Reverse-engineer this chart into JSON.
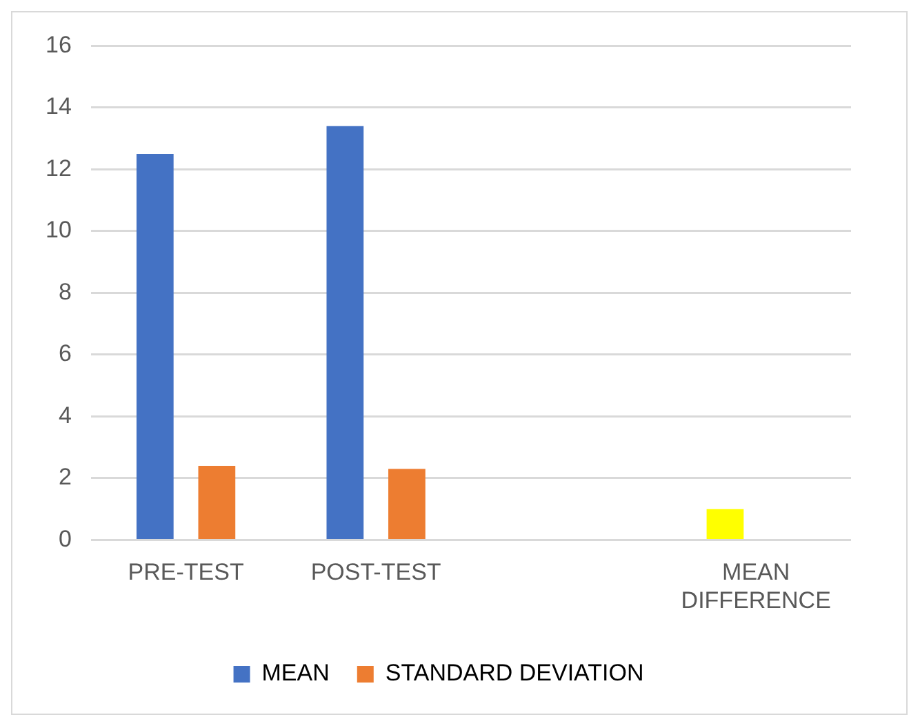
{
  "chart_data": {
    "type": "bar",
    "categories": [
      "PRE-TEST",
      "POST-TEST",
      null,
      "MEAN DIFFERENCE"
    ],
    "series": [
      {
        "name": "MEAN",
        "color": "#4472c4",
        "colors": [
          "#4472c4",
          "#4472c4",
          "#4472c4",
          "#ffff00"
        ],
        "values": [
          12.5,
          13.4,
          null,
          1.0
        ]
      },
      {
        "name": "STANDARD DEVIATION",
        "color": "#ed7d31",
        "values": [
          2.4,
          2.3,
          null,
          null
        ]
      }
    ],
    "ylim": [
      0,
      16
    ],
    "yticks": [
      0,
      2,
      4,
      6,
      8,
      10,
      12,
      14,
      16
    ],
    "grid": "y",
    "legend": "bottom"
  }
}
